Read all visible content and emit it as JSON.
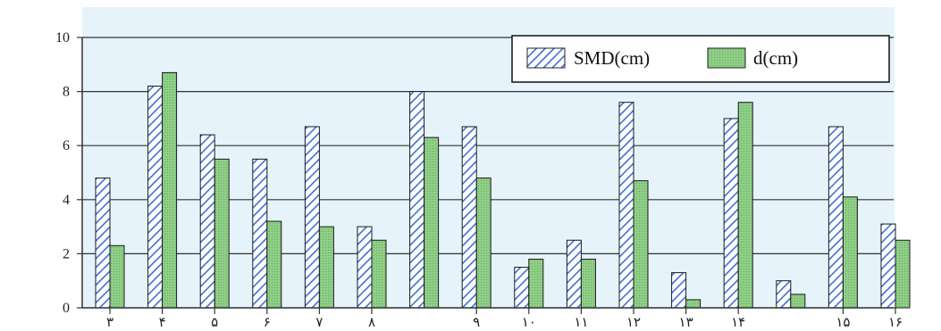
{
  "chart_data": {
    "type": "bar",
    "categories": [
      "۳",
      "۴",
      "۵",
      "۶",
      "۷",
      "۸",
      "",
      "۹",
      "۱۰",
      "۱۱",
      "۱۲",
      "۱۳",
      "۱۴",
      "",
      "۱۵",
      "۱۶"
    ],
    "series": [
      {
        "name": "SMD(cm)",
        "values": [
          4.8,
          8.2,
          6.4,
          5.5,
          6.7,
          3.0,
          8.0,
          6.7,
          1.5,
          2.5,
          7.6,
          1.3,
          7.0,
          1.0,
          6.7,
          3.1
        ]
      },
      {
        "name": "d(cm)",
        "values": [
          2.3,
          8.7,
          5.5,
          3.2,
          3.0,
          2.5,
          6.3,
          4.8,
          1.8,
          1.8,
          4.7,
          0.3,
          7.6,
          0.5,
          4.1,
          2.5
        ]
      }
    ],
    "yticks": [
      "0",
      "2",
      "4",
      "6",
      "8",
      "10"
    ],
    "ylim": [
      0,
      10
    ],
    "title": "",
    "xlabel": "",
    "ylabel": "",
    "grid": true,
    "legend_position": "top-right",
    "colors": {
      "SMD(cm)": "#3f6fd6",
      "d(cm)": "#8fce86",
      "grid": "#333333",
      "plot_bg": "#e6f3fb"
    }
  }
}
